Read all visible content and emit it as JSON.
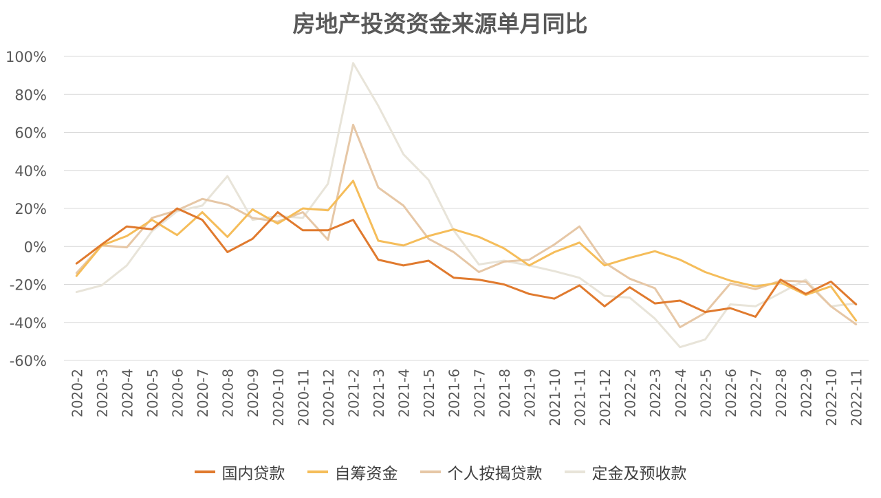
{
  "chart_data": {
    "type": "line",
    "title": "房地产投资资金来源单月同比",
    "xlabel": "",
    "ylabel": "",
    "categories": [
      "2020-2",
      "2020-3",
      "2020-4",
      "2020-5",
      "2020-6",
      "2020-7",
      "2020-8",
      "2020-9",
      "2020-10",
      "2020-11",
      "2020-12",
      "2021-2",
      "2021-3",
      "2021-4",
      "2021-5",
      "2021-6",
      "2021-7",
      "2021-8",
      "2021-9",
      "2021-10",
      "2021-11",
      "2021-12",
      "2022-2",
      "2022-3",
      "2022-4",
      "2022-5",
      "2022-6",
      "2022-7",
      "2022-8",
      "2022-9",
      "2022-10",
      "2022-11"
    ],
    "ylim": [
      -60,
      100
    ],
    "yticks": [
      100,
      80,
      60,
      40,
      20,
      0,
      -20,
      -40,
      -60
    ],
    "ytick_labels": [
      "100%",
      "80%",
      "60%",
      "40%",
      "20%",
      "0%",
      "-20%",
      "-40%",
      "-60%"
    ],
    "grid": true,
    "legend_position": "bottom",
    "series": [
      {
        "name": "国内贷款",
        "color": "#E07A2E",
        "values": [
          -9,
          1,
          10.5,
          9,
          20,
          14,
          -3,
          4,
          18,
          8.5,
          8.5,
          14,
          -7,
          -10,
          -7.5,
          -16.5,
          -17.5,
          -20,
          -25,
          -27.5,
          -20.5,
          -31.5,
          -21.5,
          -30,
          -28.5,
          -34.5,
          -32.5,
          -37,
          -17.5,
          -25,
          -18.5,
          -30.5
        ]
      },
      {
        "name": "自筹资金",
        "color": "#F5BD5A",
        "values": [
          -15.5,
          0.5,
          5.5,
          14,
          6,
          18,
          5,
          19.5,
          12,
          20,
          19,
          34.5,
          3,
          0.5,
          5.5,
          9,
          5,
          -1,
          -10,
          -3,
          2,
          -10,
          -6,
          -2.5,
          -7,
          -13.5,
          -18,
          -21,
          -19,
          -25.5,
          -21,
          -39
        ]
      },
      {
        "name": "个人按揭贷款",
        "color": "#E6C7A6",
        "values": [
          -14,
          0.5,
          -0.5,
          15,
          19,
          25,
          22,
          15,
          13,
          18,
          3.5,
          64,
          31,
          21.5,
          4,
          -3,
          -13.5,
          -8,
          -7,
          1,
          10.5,
          -8.5,
          -17,
          -22,
          -42.5,
          -35,
          -19.5,
          -22.5,
          -18,
          -18.5,
          -31.5,
          -41
        ]
      },
      {
        "name": "定金及预收款",
        "color": "#E8E4D9",
        "values": [
          -24,
          -20.5,
          -10,
          8,
          18.5,
          21.5,
          37,
          14,
          16,
          15,
          33,
          96.5,
          74,
          48.5,
          35,
          8.5,
          -9.5,
          -7.5,
          -10,
          -13,
          -16.5,
          -26,
          -27,
          -38,
          -53,
          -49,
          -30.5,
          -31.5,
          -24.5,
          -17.5,
          -31.5,
          -30
        ]
      }
    ]
  }
}
